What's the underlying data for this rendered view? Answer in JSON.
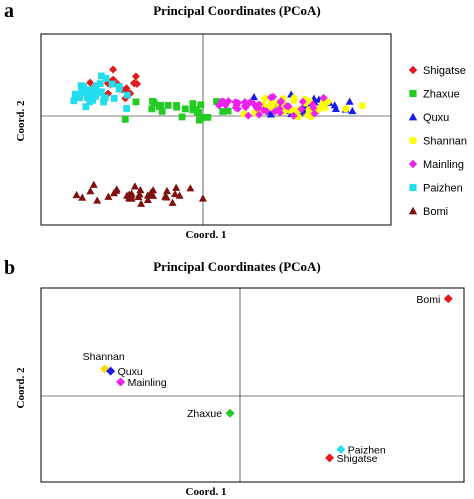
{
  "chart_data": [
    {
      "panel": "a",
      "type": "scatter",
      "title": "Principal Coordinates (PCoA)",
      "xlabel": "Coord. 1",
      "ylabel": "Coord. 2",
      "grid": false,
      "reference_lines": "zero-axes",
      "legend_position": "right",
      "xlim": [
        -1,
        1
      ],
      "ylim": [
        -1,
        1
      ],
      "series": [
        {
          "name": "Shigatse",
          "marker": "diamond",
          "color": "#e31a1c",
          "count": 18,
          "xmean": -0.55,
          "ymean": 0.42,
          "xspread": 0.28,
          "yspread": 0.22
        },
        {
          "name": "Zhaxue",
          "marker": "square",
          "color": "#22cc22",
          "count": 26,
          "xmean": -0.18,
          "ymean": 0.1,
          "xspread": 0.45,
          "yspread": 0.2
        },
        {
          "name": "Quxu",
          "marker": "triangle",
          "color": "#1a1aee",
          "count": 32,
          "xmean": 0.55,
          "ymean": 0.12,
          "xspread": 0.38,
          "yspread": 0.18
        },
        {
          "name": "Shannan",
          "marker": "circle",
          "color": "#ffff00",
          "count": 38,
          "xmean": 0.5,
          "ymean": 0.1,
          "xspread": 0.4,
          "yspread": 0.18
        },
        {
          "name": "Mainling",
          "marker": "diamond",
          "color": "#ee22ee",
          "count": 40,
          "xmean": 0.35,
          "ymean": 0.12,
          "xspread": 0.5,
          "yspread": 0.18
        },
        {
          "name": "Paizhen",
          "marker": "square",
          "color": "#22ddee",
          "count": 34,
          "xmean": -0.65,
          "ymean": 0.25,
          "xspread": 0.22,
          "yspread": 0.28
        },
        {
          "name": "Bomi",
          "marker": "triangle",
          "color": "#7f1010",
          "count": 36,
          "xmean": -0.42,
          "ymean": -0.72,
          "xspread": 0.5,
          "yspread": 0.14
        }
      ]
    },
    {
      "panel": "b",
      "type": "scatter",
      "title": "Principal Coordinates (PCoA)",
      "xlabel": "Coord. 1",
      "ylabel": "Coord. 2",
      "grid": false,
      "reference_lines": "zero-axes",
      "xlim": [
        -1,
        1
      ],
      "ylim": [
        -1,
        1
      ],
      "points": [
        {
          "name": "Bomi",
          "x": 0.93,
          "y": 0.9,
          "color": "#e31a1c",
          "marker": "diamond",
          "label_side": "left"
        },
        {
          "name": "Shannan",
          "x": -0.68,
          "y": 0.25,
          "color": "#ffd700",
          "marker": "diamond",
          "label_side": "above"
        },
        {
          "name": "Quxu",
          "x": -0.65,
          "y": 0.23,
          "color": "#1a1aee",
          "marker": "diamond",
          "label_side": "right"
        },
        {
          "name": "Mainling",
          "x": -0.6,
          "y": 0.13,
          "color": "#ee22ee",
          "marker": "diamond",
          "label_side": "right"
        },
        {
          "name": "Zhaxue",
          "x": -0.05,
          "y": -0.2,
          "color": "#22cc22",
          "marker": "diamond",
          "label_side": "left"
        },
        {
          "name": "Paizhen",
          "x": 0.45,
          "y": -0.62,
          "color": "#22ddee",
          "marker": "diamond",
          "label_side": "right"
        },
        {
          "name": "Shigatse",
          "x": 0.4,
          "y": -0.72,
          "color": "#e31a1c",
          "marker": "diamond",
          "label_side": "right"
        }
      ]
    }
  ],
  "panel_letters": [
    "a",
    "b"
  ]
}
